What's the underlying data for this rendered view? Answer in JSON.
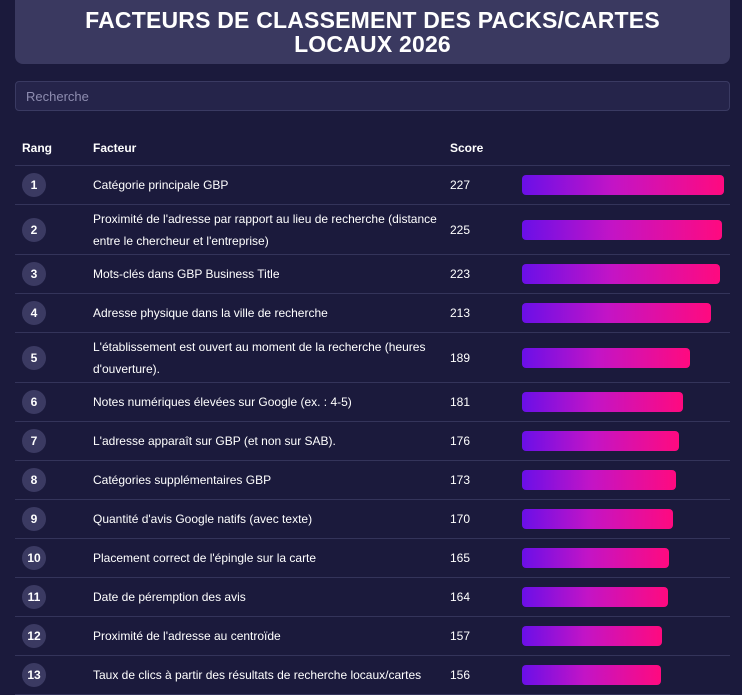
{
  "header": {
    "title": "FACTEURS DE CLASSEMENT DES PACKS/CARTES LOCAUX 2026"
  },
  "search": {
    "placeholder": "Recherche",
    "value": ""
  },
  "table": {
    "columns": {
      "rank": "Rang",
      "factor": "Facteur",
      "score": "Score"
    },
    "max_score": 227,
    "rows": [
      {
        "rank": "1",
        "factor": "Catégorie principale GBP",
        "score": 227
      },
      {
        "rank": "2",
        "factor": "Proximité de l'adresse par rapport au lieu de recherche (distance entre le chercheur et l'entreprise)",
        "score": 225
      },
      {
        "rank": "3",
        "factor": "Mots-clés dans GBP Business Title",
        "score": 223
      },
      {
        "rank": "4",
        "factor": "Adresse physique dans la ville de recherche",
        "score": 213
      },
      {
        "rank": "5",
        "factor": "L'établissement est ouvert au moment de la recherche (heures d'ouverture).",
        "score": 189
      },
      {
        "rank": "6",
        "factor": "Notes numériques élevées sur Google (ex. : 4-5)",
        "score": 181
      },
      {
        "rank": "7",
        "factor": "L'adresse apparaît sur GBP (et non sur SAB).",
        "score": 176
      },
      {
        "rank": "8",
        "factor": "Catégories supplémentaires GBP",
        "score": 173
      },
      {
        "rank": "9",
        "factor": "Quantité d'avis Google natifs (avec texte)",
        "score": 170
      },
      {
        "rank": "10",
        "factor": "Placement correct de l'épingle sur la carte",
        "score": 165
      },
      {
        "rank": "11",
        "factor": "Date de péremption des avis",
        "score": 164
      },
      {
        "rank": "12",
        "factor": "Proximité de l'adresse au centroïde",
        "score": 157
      },
      {
        "rank": "13",
        "factor": "Taux de clics à partir des résultats de recherche locaux/cartes",
        "score": 156
      }
    ]
  },
  "colors": {
    "background": "#1b1a3c",
    "title_box": "#3a3960",
    "bar_start": "#6a0fe8",
    "bar_end": "#ff0a7f"
  }
}
